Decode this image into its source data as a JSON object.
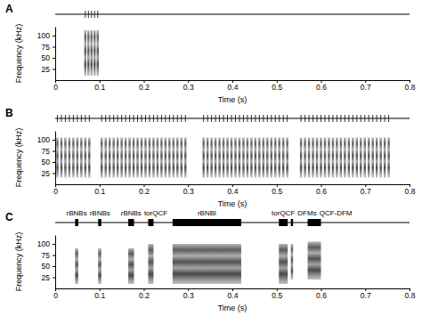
{
  "chart_data": [
    {
      "type": "spectrogram",
      "panel_label": "A",
      "xlabel": "Time (s)",
      "ylabel": "Frequency (kHz)",
      "xlim": [
        0,
        0.8
      ],
      "xticks": [
        0,
        0.1,
        0.2,
        0.3,
        0.4,
        0.5,
        0.6,
        0.7,
        0.8
      ],
      "ylim": [
        0,
        120
      ],
      "yticks": [
        25,
        50,
        75,
        100
      ],
      "color": "#333333",
      "fmin": 10,
      "fmax": 112,
      "pulses": [
        0.068,
        0.075,
        0.082,
        0.089,
        0.096
      ]
    },
    {
      "type": "spectrogram",
      "panel_label": "B",
      "xlabel": "Time (s)",
      "ylabel": "Frequency (kHz)",
      "xlim": [
        0,
        0.8
      ],
      "xticks": [
        0,
        0.1,
        0.2,
        0.3,
        0.4,
        0.5,
        0.6,
        0.7,
        0.8
      ],
      "ylim": [
        0,
        120
      ],
      "yticks": [
        25,
        50,
        75,
        100
      ],
      "color": "#333333",
      "fmin": 15,
      "fmax": 105,
      "pulses": [
        0.005,
        0.014,
        0.023,
        0.032,
        0.041,
        0.05,
        0.059,
        0.068,
        0.077,
        0.105,
        0.114,
        0.123,
        0.132,
        0.141,
        0.15,
        0.159,
        0.168,
        0.177,
        0.186,
        0.195,
        0.204,
        0.213,
        0.222,
        0.231,
        0.24,
        0.249,
        0.258,
        0.267,
        0.276,
        0.285,
        0.294,
        0.335,
        0.344,
        0.353,
        0.362,
        0.371,
        0.38,
        0.389,
        0.398,
        0.407,
        0.416,
        0.425,
        0.434,
        0.443,
        0.452,
        0.461,
        0.47,
        0.479,
        0.488,
        0.497,
        0.506,
        0.515,
        0.524,
        0.555,
        0.564,
        0.573,
        0.582,
        0.591,
        0.6,
        0.609,
        0.618,
        0.627,
        0.636,
        0.645,
        0.654,
        0.663,
        0.672,
        0.681,
        0.69,
        0.699,
        0.708,
        0.717,
        0.726,
        0.735,
        0.744,
        0.753
      ]
    },
    {
      "type": "spectrogram",
      "panel_label": "C",
      "xlabel": "Time (s)",
      "ylabel": "Frequency (kHz)",
      "xlim": [
        0,
        0.8
      ],
      "xticks": [
        0,
        0.1,
        0.2,
        0.3,
        0.4,
        0.5,
        0.6,
        0.7,
        0.8
      ],
      "ylim": [
        0,
        120
      ],
      "yticks": [
        25,
        50,
        75,
        100
      ],
      "color": "#333333",
      "events": [
        {
          "label": "rBNBs",
          "start": 0.045,
          "end": 0.052,
          "fmin": 10,
          "fmax": 90
        },
        {
          "label": "rBNBs",
          "start": 0.097,
          "end": 0.104,
          "fmin": 10,
          "fmax": 90
        },
        {
          "label": "rBNBs",
          "start": 0.165,
          "end": 0.178,
          "fmin": 10,
          "fmax": 90
        },
        {
          "label": "torQCF",
          "start": 0.21,
          "end": 0.222,
          "fmin": 10,
          "fmax": 100
        },
        {
          "label": "rBNBl",
          "start": 0.265,
          "end": 0.42,
          "fmin": 10,
          "fmax": 100
        },
        {
          "label": "torQCF",
          "start": 0.505,
          "end": 0.525,
          "fmin": 10,
          "fmax": 100
        },
        {
          "label": "DFMs",
          "start": 0.532,
          "end": 0.537,
          "fmin": 20,
          "fmax": 100
        },
        {
          "label": "QCF-DFM",
          "start": 0.57,
          "end": 0.6,
          "fmin": 20,
          "fmax": 105
        }
      ]
    }
  ]
}
